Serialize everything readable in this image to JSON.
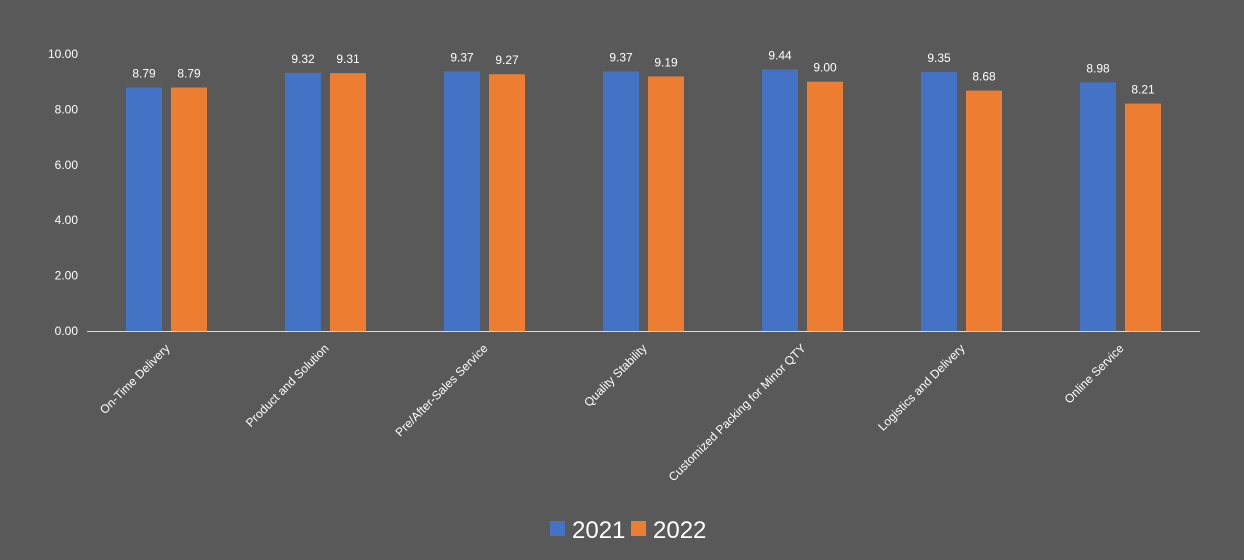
{
  "chart_data": {
    "type": "bar",
    "categories": [
      "On-Time Delivery",
      "Product and Solution",
      "Pre/After-Sales Service",
      "Quality Stability",
      "Customized Packing for Minor QTY",
      "Logistics and Delivery",
      "Online Service"
    ],
    "series": [
      {
        "name": "2021",
        "color": "#4472C4",
        "values": [
          8.79,
          9.32,
          9.37,
          9.37,
          9.44,
          9.35,
          8.98
        ]
      },
      {
        "name": "2022",
        "color": "#ED7D31",
        "values": [
          8.79,
          9.31,
          9.27,
          9.19,
          9.0,
          8.68,
          8.21
        ]
      }
    ],
    "ylim": [
      0,
      10
    ],
    "y_ticks": [
      0,
      2,
      4,
      6,
      8,
      10
    ],
    "y_tick_format_decimals": 2,
    "data_label_decimals": 2,
    "grid": false,
    "legend": "bottom-center",
    "background": "#595959",
    "axis_color": "#d9d9d9",
    "text_color": "#ffffff"
  }
}
